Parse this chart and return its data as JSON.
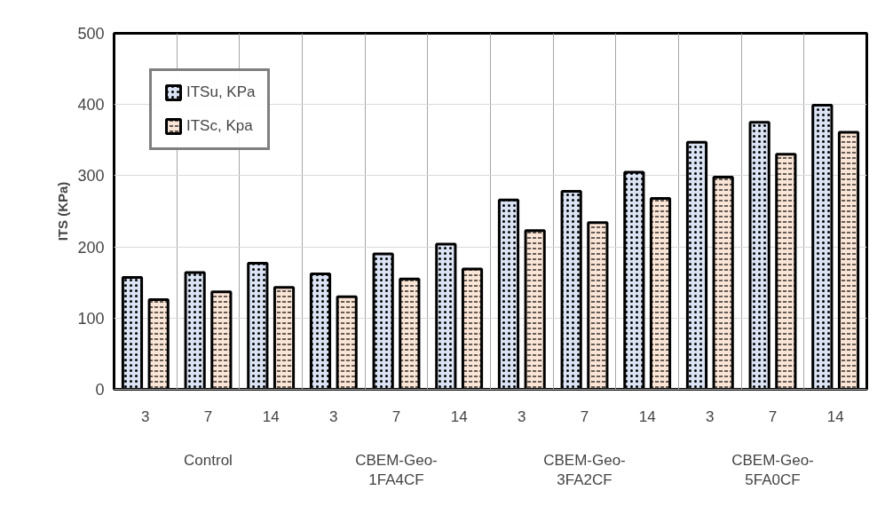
{
  "chart_data": {
    "type": "bar",
    "ylabel": "ITS (KPa)",
    "categories": [
      "3",
      "7",
      "14",
      "3",
      "7",
      "14",
      "3",
      "7",
      "14",
      "3",
      "7",
      "14"
    ],
    "annotations": [
      "Control",
      "CBEM-Geo-1FA4CF",
      "CBEM-Geo-3FA2CF",
      "CBEM-Geo-5FA0CF"
    ],
    "series": [
      {
        "name": "ITSu, KPa",
        "color": "#dae3f3",
        "values": [
          157,
          164,
          177,
          162,
          190,
          204,
          266,
          278,
          305,
          347,
          375,
          399
        ]
      },
      {
        "name": "ITSc, Kpa",
        "color": "#fbe5d6",
        "values": [
          126,
          137,
          143,
          130,
          155,
          169,
          223,
          234,
          268,
          298,
          330,
          361
        ]
      }
    ],
    "ylim": [
      0,
      500
    ],
    "yticks": [
      0,
      100,
      200,
      300,
      400,
      500
    ],
    "grid": true,
    "legend": "top left"
  }
}
